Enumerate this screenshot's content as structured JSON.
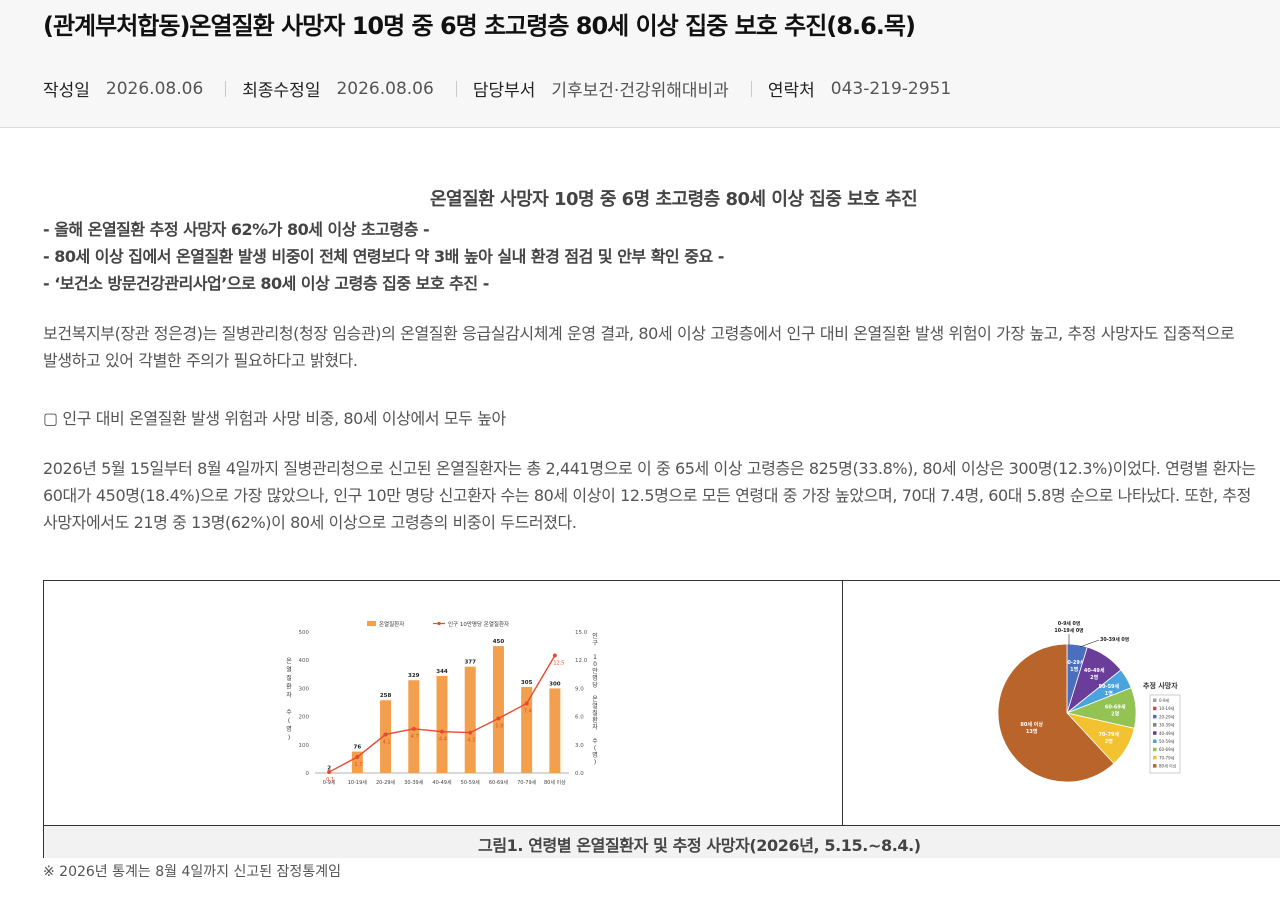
{
  "header": {
    "title": "(관계부처합동)온열질환 사망자 10명 중 6명 초고령층 80세 이상 집중 보호 추진(8.6.목)",
    "meta": [
      {
        "key": "작성일",
        "value": "2026.08.06"
      },
      {
        "key": "최종수정일",
        "value": "2026.08.06"
      },
      {
        "key": "담당부서",
        "value": "기후보건·건강위해대비과"
      },
      {
        "key": "연락처",
        "value": "043-219-2951"
      }
    ]
  },
  "article": {
    "subtitle": "온열질환 사망자 10명 중 6명 초고령층 80세 이상 집중 보호 추진",
    "bullets": [
      "- 올해 온열질환 추정 사망자 62%가 80세 이상 초고령층 -",
      "- 80세 이상 집에서 온열질환 발생 비중이 전체 연령보다 약 3배 높아 실내 환경 점검 및 안부 확인 중요 -",
      "- ‘보건소 방문건강관리사업’으로 80세 이상 고령층 집중 보호 추진 -"
    ],
    "para1": [
      "  보건복지부(장관 정은경)는 질병관리청(청장 임승관)의 온열질환 응급실감시체계 운영 결과, 80세 이상 고령층에서 인구 대비 온열질환 발생 위험이 가장 높고, 추정 사망자도 집중적으로",
      "발생하고 있어 각별한 주의가 필요하다고 밝혔다."
    ],
    "section_heading": "▢ 인구 대비 온열질환 발생 위험과 사망 비중, 80세 이상에서 모두 높아",
    "para2": [
      "  2026년 5월 15일부터 8월 4일까지 질병관리청으로 신고된 온열질환자는 총 2,441명으로 이 중 65세 이상 고령층은 825명(33.8%), 80세 이상은 300명(12.3%)이었다. 연령별 환자는",
      "60대가 450명(18.4%)으로 가장 많았으나, 인구 10만 명당 신고환자 수는 80세 이상이 12.5명으로 모든 연령대 중 가장 높았으며, 70대 7.4명, 60대 5.8명 순으로 나타났다. 또한, 추정",
      "사망자에서도 21명 중 13명(62%)이 80세 이상으로 고령층의 비중이 두드러졌다."
    ],
    "figure_caption": "그림1. 연령별 온열질환자 및 추정 사망자(2026년, 5.15.~8.4.)",
    "note": "※ 2026년 통계는 8월 4일까지 신고된 잠정통계임"
  },
  "chart_data": [
    {
      "type": "bar",
      "categories": [
        "0-9세",
        "10-19세",
        "20-29세",
        "30-39세",
        "40-49세",
        "50-59세",
        "60-69세",
        "70-79세",
        "80세 이상"
      ],
      "series": [
        {
          "name": "온열질환자",
          "values": [
            2,
            76,
            258,
            329,
            344,
            377,
            450,
            305,
            300
          ],
          "color": "#f2a04e"
        },
        {
          "name": "인구 10만명당 온열질환자",
          "values": [
            0.1,
            1.7,
            4.1,
            4.7,
            4.4,
            4.3,
            5.8,
            7.4,
            12.5
          ],
          "color": "#e84a2f"
        }
      ],
      "ylabel": "온열질환자 수(명)",
      "y2label": "인구 10만명당 온열질환자 수(명)",
      "ylim": [
        0,
        500
      ],
      "y2lim": [
        0,
        15
      ],
      "yticks": [
        "0",
        "100",
        "200",
        "300",
        "400",
        "500"
      ],
      "y2ticks": [
        "0.0",
        "3.0",
        "6.0",
        "9.0",
        "12.0",
        "15.0"
      ]
    },
    {
      "type": "pie",
      "legend_title": "추정 사망자",
      "labels": [
        "0-9세",
        "10-19세",
        "20-29세",
        "30-39세",
        "40-49세",
        "50-59세",
        "60-69세",
        "70-79세",
        "80세 이상"
      ],
      "values": [
        0,
        0,
        1,
        0,
        2,
        1,
        2,
        2,
        13
      ],
      "slice_labels": [
        "0-9세 0명",
        "10-19세 0명",
        "20-29세 1명",
        "30-39세 0명",
        "40-49세 2명",
        "50-59세 1명",
        "60-69세 2명",
        "70-79세 2명",
        "80세 이상 13명"
      ],
      "colors": [
        "#9aa3b0",
        "#c0504d",
        "#4a6fbf",
        "#7f7f7f",
        "#6a3d9a",
        "#4aa3df",
        "#92c353",
        "#f2c230",
        "#b8642a"
      ]
    }
  ]
}
